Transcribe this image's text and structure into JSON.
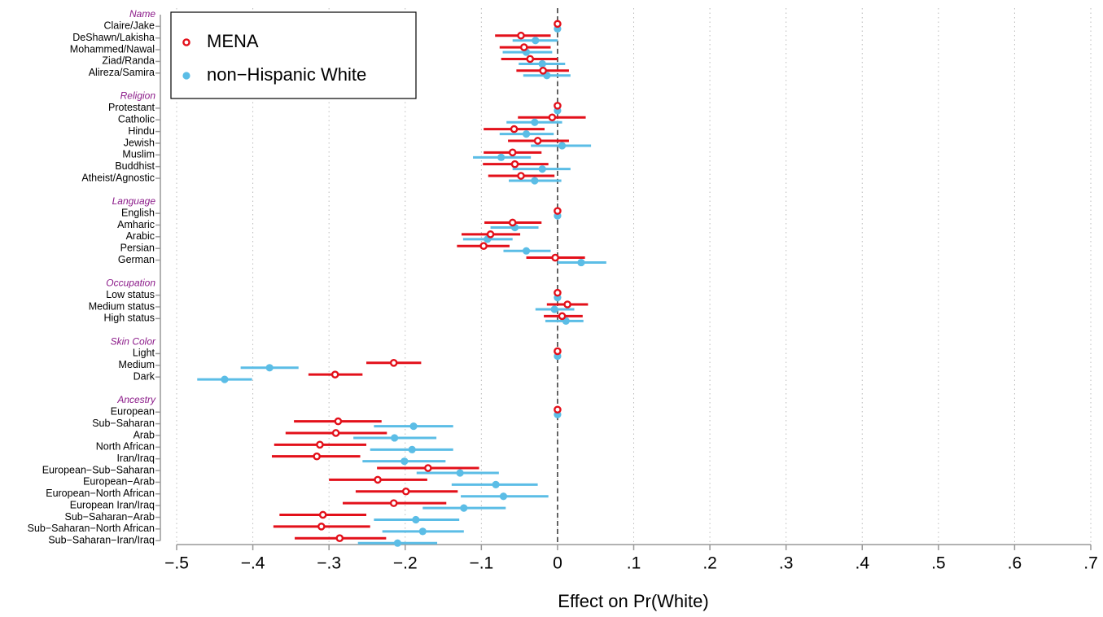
{
  "chart_data": {
    "type": "dot-whisker",
    "xlabel": "Effect on Pr(White)",
    "xlim": [
      -0.5,
      0.7
    ],
    "xticks": [
      {
        "value": -0.5,
        "label": "−.5"
      },
      {
        "value": -0.4,
        "label": "−.4"
      },
      {
        "value": -0.3,
        "label": "−.3"
      },
      {
        "value": -0.2,
        "label": "−.2"
      },
      {
        "value": -0.1,
        "label": "−.1"
      },
      0,
      {
        "value": 0.1,
        "label": ".1"
      },
      {
        "value": 0.2,
        "label": ".2"
      },
      {
        "value": 0.3,
        "label": ".3"
      },
      {
        "value": 0.4,
        "label": ".4"
      },
      {
        "value": 0.5,
        "label": ".5"
      },
      {
        "value": 0.6,
        "label": ".6"
      },
      {
        "value": 0.7,
        "label": ".7"
      }
    ],
    "grid": true,
    "reference_line": 0,
    "legend_position": "top-left",
    "groups": [
      {
        "label": "Name",
        "categories": [
          "Claire/Jake",
          "DeShawn/Lakisha",
          "Mohammed/Nawal",
          "Ziad/Randa",
          "Alireza/Samira"
        ]
      },
      {
        "label": "Religion",
        "categories": [
          "Protestant",
          "Catholic",
          "Hindu",
          "Jewish",
          "Muslim",
          "Buddhist",
          "Atheist/Agnostic"
        ]
      },
      {
        "label": "Language",
        "categories": [
          "English",
          "Amharic",
          "Arabic",
          "Persian",
          "German"
        ]
      },
      {
        "label": "Occupation",
        "categories": [
          "Low status",
          "Medium status",
          "High status"
        ]
      },
      {
        "label": "Skin Color",
        "categories": [
          "Light",
          "Medium",
          "Dark"
        ]
      },
      {
        "label": "Ancestry",
        "categories": [
          "European",
          "Sub−Saharan",
          "Arab",
          "North African",
          "Iran/Iraq",
          "European−Sub−Saharan",
          "European−Arab",
          "European−North African",
          "European Iran/Iraq",
          "Sub−Saharan−Arab",
          "Sub−Saharan−North African",
          "Sub−Saharan−Iran/Iraq"
        ]
      }
    ],
    "series": [
      {
        "name": "non−Hispanic White",
        "color": "#5bbde6",
        "marker": "filled",
        "values": [
          0,
          -0.029,
          -0.041,
          -0.02,
          -0.014,
          0,
          -0.03,
          -0.041,
          0.006,
          -0.074,
          -0.02,
          -0.03,
          0,
          -0.056,
          -0.092,
          -0.041,
          0.031,
          0,
          -0.004,
          0.011,
          0,
          -0.378,
          -0.437,
          0,
          -0.189,
          -0.214,
          -0.191,
          -0.201,
          -0.128,
          -0.081,
          -0.071,
          -0.123,
          -0.186,
          -0.177,
          -0.21
        ],
        "lower": [
          0,
          -0.059,
          -0.072,
          -0.051,
          -0.045,
          0,
          -0.067,
          -0.076,
          -0.035,
          -0.111,
          -0.059,
          -0.064,
          0,
          -0.088,
          -0.124,
          -0.071,
          0,
          0,
          -0.029,
          -0.016,
          0,
          -0.416,
          -0.473,
          0,
          -0.241,
          -0.268,
          -0.246,
          -0.256,
          -0.185,
          -0.139,
          -0.127,
          -0.177,
          -0.241,
          -0.23,
          -0.262
        ],
        "upper": [
          0,
          0,
          -0.007,
          0.01,
          0.017,
          0,
          0.006,
          -0.005,
          0.044,
          -0.035,
          0.017,
          0.005,
          0,
          -0.025,
          -0.059,
          -0.009,
          0.064,
          0,
          0.022,
          0.034,
          0,
          -0.34,
          -0.401,
          0,
          -0.137,
          -0.159,
          -0.137,
          -0.147,
          -0.077,
          -0.026,
          -0.012,
          -0.068,
          -0.129,
          -0.123,
          -0.158
        ]
      },
      {
        "name": "MENA",
        "color": "#e3101a",
        "marker": "open",
        "values": [
          0,
          -0.048,
          -0.044,
          -0.036,
          -0.019,
          0,
          -0.007,
          -0.057,
          -0.026,
          -0.059,
          -0.056,
          -0.048,
          0,
          -0.059,
          -0.088,
          -0.097,
          -0.003,
          0,
          0.013,
          0.006,
          0,
          -0.215,
          -0.292,
          0,
          -0.288,
          -0.291,
          -0.312,
          -0.316,
          -0.17,
          -0.236,
          -0.199,
          -0.215,
          -0.308,
          -0.31,
          -0.286
        ],
        "lower": [
          0,
          -0.082,
          -0.076,
          -0.074,
          -0.054,
          0,
          -0.052,
          -0.097,
          -0.065,
          -0.097,
          -0.098,
          -0.091,
          0,
          -0.096,
          -0.126,
          -0.132,
          -0.041,
          0,
          -0.014,
          -0.018,
          0,
          -0.251,
          -0.327,
          0,
          -0.346,
          -0.357,
          -0.372,
          -0.375,
          -0.237,
          -0.3,
          -0.265,
          -0.282,
          -0.365,
          -0.373,
          -0.345
        ],
        "upper": [
          0,
          -0.009,
          -0.009,
          0,
          0.015,
          0,
          0.037,
          -0.017,
          0.015,
          -0.021,
          -0.012,
          -0.004,
          0,
          -0.021,
          -0.049,
          -0.063,
          0.036,
          0,
          0.04,
          0.033,
          0,
          -0.179,
          -0.256,
          0,
          -0.231,
          -0.224,
          -0.251,
          -0.259,
          -0.103,
          -0.171,
          -0.131,
          -0.146,
          -0.251,
          -0.246,
          -0.225
        ]
      }
    ]
  }
}
